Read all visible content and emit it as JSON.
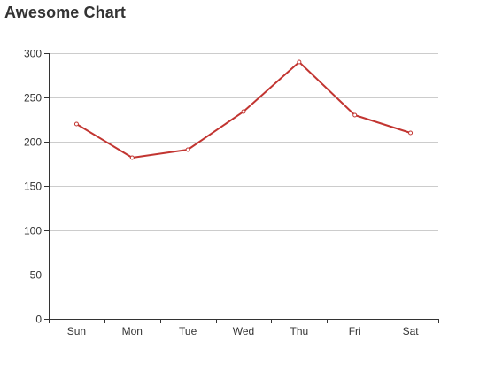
{
  "chart_data": {
    "type": "line",
    "title": "Awesome Chart",
    "categories": [
      "Sun",
      "Mon",
      "Tue",
      "Wed",
      "Thu",
      "Fri",
      "Sat"
    ],
    "series": [
      {
        "values": [
          220,
          182,
          191,
          234,
          290,
          230,
          210
        ],
        "color": "#c23531"
      }
    ],
    "xlabel": "",
    "ylabel": "",
    "ylim": [
      0,
      300
    ],
    "yticks": [
      0,
      50,
      100,
      150,
      200,
      250,
      300
    ],
    "grid": true,
    "legend": "none"
  }
}
